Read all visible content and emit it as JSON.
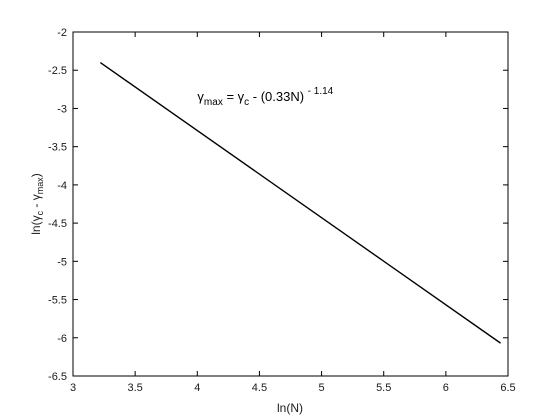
{
  "chart_data": {
    "type": "line",
    "title": "",
    "xlabel": "ln(N)",
    "ylabel_parts": {
      "pre": "ln(",
      "gamma1": "γ",
      "sub1": "c",
      "mid": " - ",
      "gamma2": "γ",
      "sub2": "max",
      "post": ")"
    },
    "xlim": [
      3,
      6.5
    ],
    "ylim": [
      -6.5,
      -2
    ],
    "xticks": [
      3,
      3.5,
      4,
      4.5,
      5,
      5.5,
      6,
      6.5
    ],
    "xtick_labels": [
      "3",
      "3.5",
      "4",
      "4.5",
      "5",
      "5.5",
      "6",
      "6.5"
    ],
    "yticks": [
      -2,
      -2.5,
      -3,
      -3.5,
      -4,
      -4.5,
      -5,
      -5.5,
      -6,
      -6.5
    ],
    "ytick_labels": [
      "-2",
      "-2.5",
      "-3",
      "-3.5",
      "-4",
      "-4.5",
      "-5",
      "-5.5",
      "-6",
      "-6.5"
    ],
    "grid": false,
    "series": [
      {
        "x": [
          3.22,
          6.44
        ],
        "y": [
          -2.4,
          -6.07
        ],
        "color": "#000000"
      }
    ],
    "annotation": {
      "x": 4.5,
      "y": -2.9,
      "parts": {
        "g1": "γ",
        "s1": "max",
        "eq": " = ",
        "g2": "γ",
        "s2": "c",
        "rest": " - (0.33N) ",
        "sup": "- 1.14"
      }
    }
  }
}
